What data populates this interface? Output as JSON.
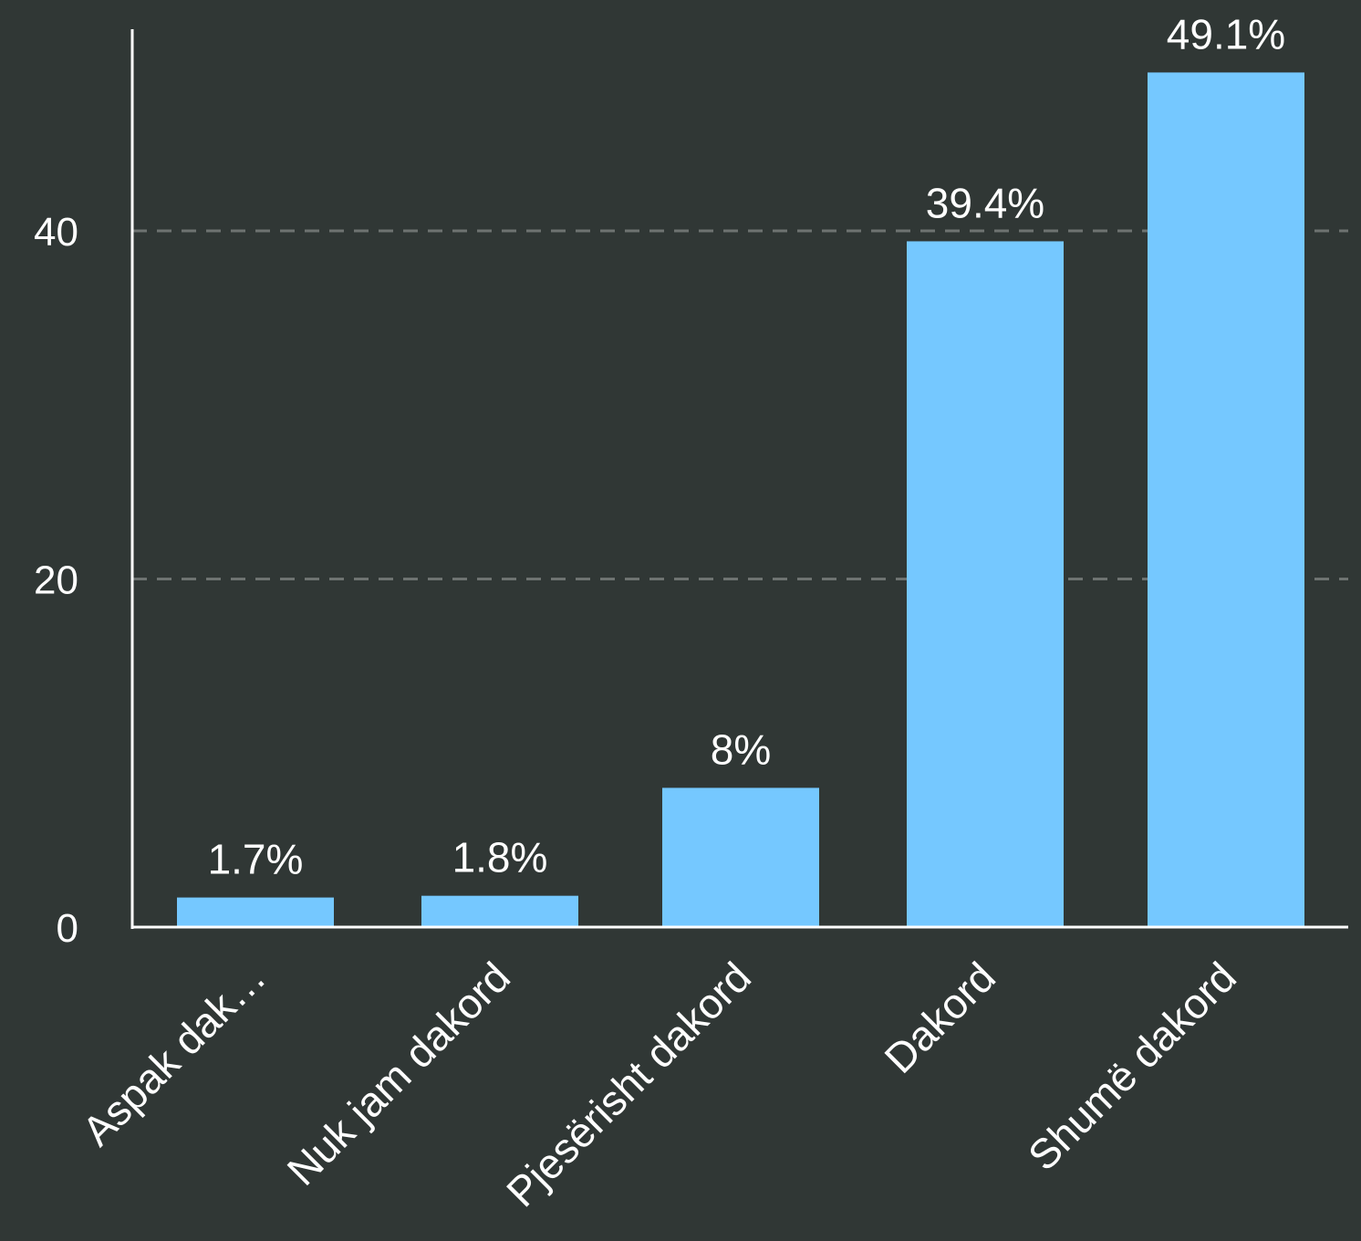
{
  "chart_data": {
    "type": "bar",
    "title": "",
    "xlabel": "",
    "ylabel": "",
    "categories": [
      "Aspak dak…",
      "Nuk jam dakord",
      "Pjesërisht dakord",
      "Dakord",
      "Shumë dakord"
    ],
    "values": [
      1.7,
      1.8,
      8,
      39.4,
      49.1
    ],
    "data_labels": [
      "1.7%",
      "1.8%",
      "8%",
      "39.4%",
      "49.1%"
    ],
    "yticks": [
      0,
      20,
      40
    ],
    "ytick_labels": [
      "0",
      "20",
      "40"
    ],
    "ylim": [
      0,
      51.5
    ],
    "grid": true,
    "grid_style": "dashed",
    "legend": "none",
    "colors": {
      "background": "#303735",
      "bar": "#75c8ff",
      "axis": "#ffffff",
      "grid": "#6e7371",
      "text": "#ffffff"
    }
  }
}
